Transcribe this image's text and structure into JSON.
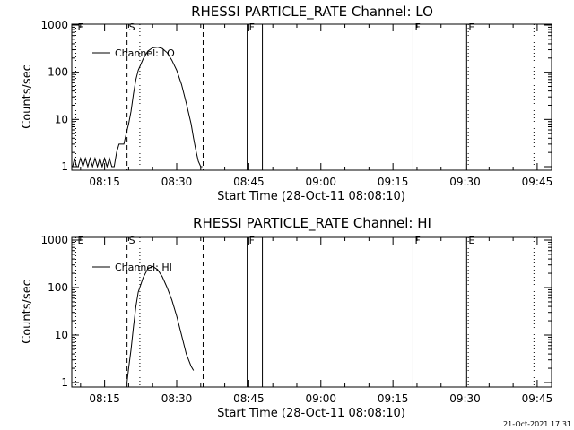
{
  "footer": "21-Oct-2021 17:31",
  "chart_data": [
    {
      "type": "line",
      "title": "RHESSI PARTICLE_RATE Channel: LO",
      "xlabel": "Start Time (28-Oct-11 08:08:10)",
      "ylabel": "Counts/sec",
      "yscale": "log",
      "ylim": [
        1,
        1000
      ],
      "xlim": [
        "08:08:10",
        "09:48:00"
      ],
      "x_ticks": [
        "08:15",
        "08:30",
        "08:45",
        "09:00",
        "09:15",
        "09:30",
        "09:45"
      ],
      "y_ticks": [
        "1",
        "10",
        "100",
        "1000"
      ],
      "legend": "Channel: LO",
      "legend_position": "top-left",
      "markers": [
        {
          "label": "E",
          "time": "08:09:00",
          "style": "dotted"
        },
        {
          "label": "S",
          "time": "08:19:40",
          "style": "dashed"
        },
        {
          "label": "",
          "time": "08:22:20",
          "style": "dotted"
        },
        {
          "label": "",
          "time": "08:35:30",
          "style": "dashed"
        },
        {
          "label": "F",
          "time": "08:44:40",
          "style": "solid"
        },
        {
          "label": "",
          "time": "08:47:50",
          "style": "solid"
        },
        {
          "label": "F",
          "time": "09:19:10",
          "style": "solid"
        },
        {
          "label": "E",
          "time": "09:30:20",
          "style": "solid"
        },
        {
          "label": "",
          "time": "09:30:40",
          "style": "dotted"
        },
        {
          "label": "",
          "time": "09:44:20",
          "style": "dotted"
        }
      ],
      "series": [
        {
          "name": "Channel: LO",
          "x": [
            "08:08:20",
            "08:08:45",
            "08:09:10",
            "08:09:30",
            "08:10:00",
            "08:10:30",
            "08:11:00",
            "08:11:30",
            "08:12:00",
            "08:12:30",
            "08:13:00",
            "08:13:30",
            "08:14:00",
            "08:14:30",
            "08:15:00",
            "08:15:30",
            "08:16:00",
            "08:16:30",
            "08:17:00",
            "08:17:30",
            "08:18:00",
            "08:18:30",
            "08:19:00",
            "08:19:30",
            "08:20:00",
            "08:20:30",
            "08:21:00",
            "08:21:30",
            "08:22:00",
            "08:23:00",
            "08:24:00",
            "08:25:00",
            "08:26:00",
            "08:27:00",
            "08:28:00",
            "08:29:00",
            "08:30:00",
            "08:31:00",
            "08:32:00",
            "08:33:00",
            "08:33:30",
            "08:34:00",
            "08:34:30",
            "08:35:00",
            "08:35:20"
          ],
          "values": [
            1.0,
            1.5,
            1.0,
            1.0,
            1.5,
            1.0,
            1.5,
            1.0,
            1.5,
            1.0,
            1.5,
            1.0,
            1.5,
            1.0,
            1.5,
            1.0,
            1.5,
            1.0,
            1.0,
            2.0,
            3.0,
            3.0,
            3.0,
            5.0,
            8.0,
            15,
            35,
            70,
            110,
            190,
            280,
            330,
            340,
            320,
            260,
            180,
            110,
            55,
            22,
            8,
            4,
            2.2,
            1.3,
            1.0,
            1.0
          ]
        }
      ]
    },
    {
      "type": "line",
      "title": "RHESSI PARTICLE_RATE Channel: HI",
      "xlabel": "Start Time (28-Oct-11 08:08:10)",
      "ylabel": "Counts/sec",
      "yscale": "log",
      "ylim": [
        1,
        1000
      ],
      "xlim": [
        "08:08:10",
        "09:48:00"
      ],
      "x_ticks": [
        "08:15",
        "08:30",
        "08:45",
        "09:00",
        "09:15",
        "09:30",
        "09:45"
      ],
      "y_ticks": [
        "1",
        "10",
        "100",
        "1000"
      ],
      "legend": "Channel: HI",
      "legend_position": "top-left",
      "markers": [
        {
          "label": "E",
          "time": "08:09:00",
          "style": "dotted"
        },
        {
          "label": "S",
          "time": "08:19:40",
          "style": "dashed"
        },
        {
          "label": "",
          "time": "08:22:20",
          "style": "dotted"
        },
        {
          "label": "",
          "time": "08:35:30",
          "style": "dashed"
        },
        {
          "label": "F",
          "time": "08:44:40",
          "style": "solid"
        },
        {
          "label": "",
          "time": "08:47:50",
          "style": "solid"
        },
        {
          "label": "F",
          "time": "09:19:10",
          "style": "solid"
        },
        {
          "label": "E",
          "time": "09:30:20",
          "style": "solid"
        },
        {
          "label": "",
          "time": "09:30:40",
          "style": "dotted"
        },
        {
          "label": "",
          "time": "09:44:20",
          "style": "dotted"
        }
      ],
      "series": [
        {
          "name": "Channel: HI",
          "x": [
            "08:19:40",
            "08:20:00",
            "08:20:30",
            "08:21:00",
            "08:21:30",
            "08:22:00",
            "08:23:00",
            "08:24:00",
            "08:25:00",
            "08:26:00",
            "08:27:00",
            "08:28:00",
            "08:29:00",
            "08:30:00",
            "08:31:00",
            "08:32:00",
            "08:33:00",
            "08:33:30"
          ],
          "values": [
            1.0,
            2.0,
            5.0,
            15,
            40,
            80,
            160,
            250,
            280,
            240,
            170,
            100,
            55,
            25,
            10,
            4.0,
            2.2,
            1.8
          ]
        }
      ]
    }
  ]
}
